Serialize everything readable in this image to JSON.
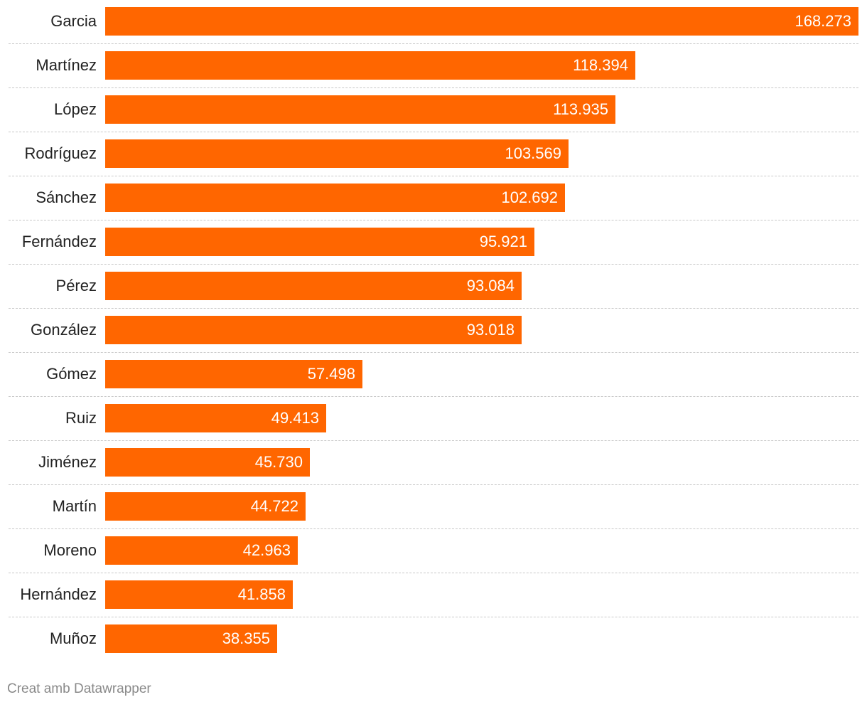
{
  "chart_data": {
    "type": "bar",
    "orientation": "horizontal",
    "categories": [
      "Garcia",
      "Martínez",
      "López",
      "Rodríguez",
      "Sánchez",
      "Fernández",
      "Pérez",
      "González",
      "Gómez",
      "Ruiz",
      "Jiménez",
      "Martín",
      "Moreno",
      "Hernández",
      "Muñoz"
    ],
    "values": [
      168273,
      118394,
      113935,
      103569,
      102692,
      95921,
      93084,
      93018,
      57498,
      49413,
      45730,
      44722,
      42963,
      41858,
      38355
    ],
    "value_labels": [
      "168.273",
      "118.394",
      "113.935",
      "103.569",
      "102.692",
      "95.921",
      "93.084",
      "93.018",
      "57.498",
      "49.413",
      "45.730",
      "44.722",
      "42.963",
      "41.858",
      "38.355"
    ],
    "xlim": [
      0,
      168273
    ],
    "bar_color": "#ff6600",
    "title": "",
    "xlabel": "",
    "ylabel": ""
  },
  "footer": {
    "credit": "Creat amb Datawrapper"
  }
}
